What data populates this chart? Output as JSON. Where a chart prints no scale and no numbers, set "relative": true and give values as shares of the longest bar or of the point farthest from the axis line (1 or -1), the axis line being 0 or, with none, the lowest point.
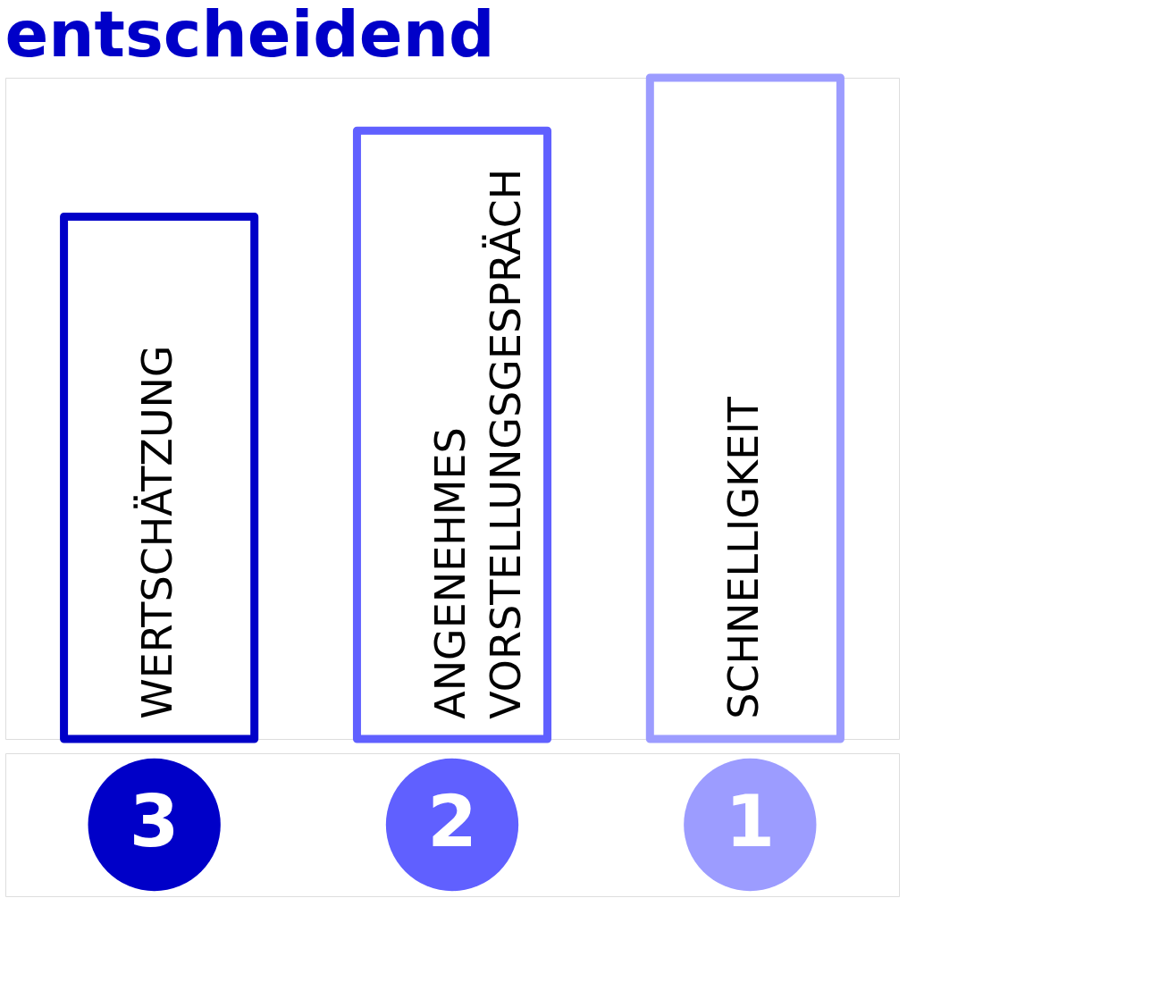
{
  "chart_data": {
    "type": "bar",
    "title": "entscheidend",
    "relative": true,
    "categories": [
      "WERTSCHÄTZUNG",
      "ANGENEHMES\nVORSTELLUNGSGESPRÄCH",
      "SCHNELLIGKEIT"
    ],
    "values": [
      0.79,
      0.92,
      1
    ],
    "colors": [
      "#0000c8",
      "#6060ff",
      "#9c9cff"
    ],
    "annotations": [
      "3",
      "2",
      "1"
    ]
  }
}
